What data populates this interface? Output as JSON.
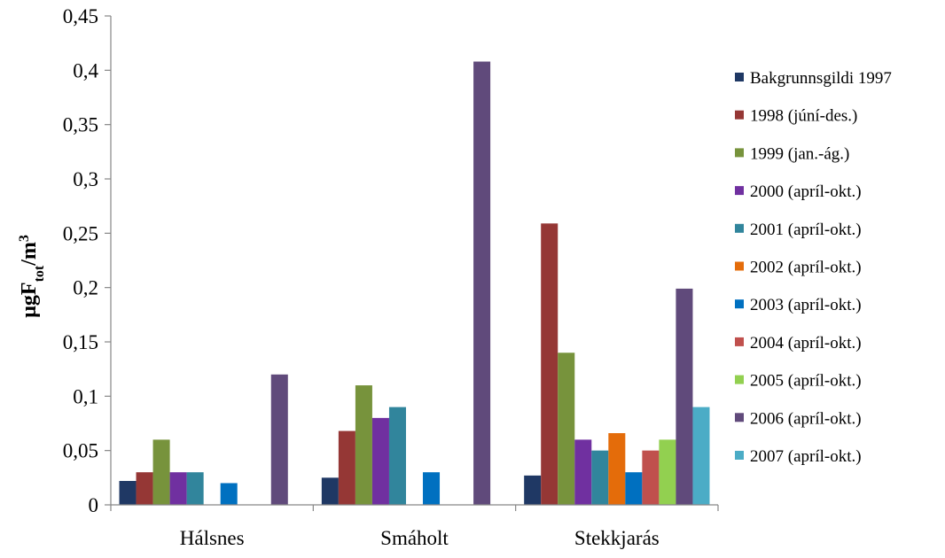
{
  "chart_data": {
    "type": "bar",
    "title": "",
    "xlabel": "",
    "ylabel": {
      "main": "µgF",
      "sub": "tot",
      "unit": "/m",
      "sup": "3"
    },
    "ylim": [
      0,
      0.45
    ],
    "yticks": [
      "0",
      "0,05",
      "0,1",
      "0,15",
      "0,2",
      "0,25",
      "0,3",
      "0,35",
      "0,4",
      "0,45"
    ],
    "categories": [
      "Hálsnes",
      "Smáholt",
      "Stekkjarás"
    ],
    "legend_position": "right",
    "grid": false,
    "series": [
      {
        "name": "Bakgrunnsgildi 1997",
        "color": "#1F3864",
        "values": [
          0.022,
          0.025,
          0.027
        ]
      },
      {
        "name": "1998 (júní-des.)",
        "color": "#953735",
        "values": [
          0.03,
          0.068,
          0.259
        ]
      },
      {
        "name": "1999 (jan.-ág.)",
        "color": "#77933C",
        "values": [
          0.06,
          0.11,
          0.14
        ]
      },
      {
        "name": "2000 (apríl-okt.)",
        "color": "#7030A0",
        "values": [
          0.03,
          0.08,
          0.06
        ]
      },
      {
        "name": "2001 (apríl-okt.)",
        "color": "#31859C",
        "values": [
          0.03,
          0.09,
          0.05
        ]
      },
      {
        "name": "2002 (apríl-okt.)",
        "color": "#E46C0A",
        "values": [
          null,
          null,
          0.066
        ]
      },
      {
        "name": "2003 (apríl-okt.)",
        "color": "#0070C0",
        "values": [
          0.02,
          0.03,
          0.03
        ]
      },
      {
        "name": "2004 (apríl-okt.)",
        "color": "#C0504D",
        "values": [
          null,
          null,
          0.05
        ]
      },
      {
        "name": "2005 (apríl-okt.)",
        "color": "#92D050",
        "values": [
          null,
          null,
          0.06
        ]
      },
      {
        "name": "2006 (apríl-okt.)",
        "color": "#604A7B",
        "values": [
          0.12,
          0.408,
          0.199
        ]
      },
      {
        "name": "2007 (apríl-okt.)",
        "color": "#4BACC6",
        "values": [
          null,
          null,
          0.09
        ]
      }
    ]
  }
}
